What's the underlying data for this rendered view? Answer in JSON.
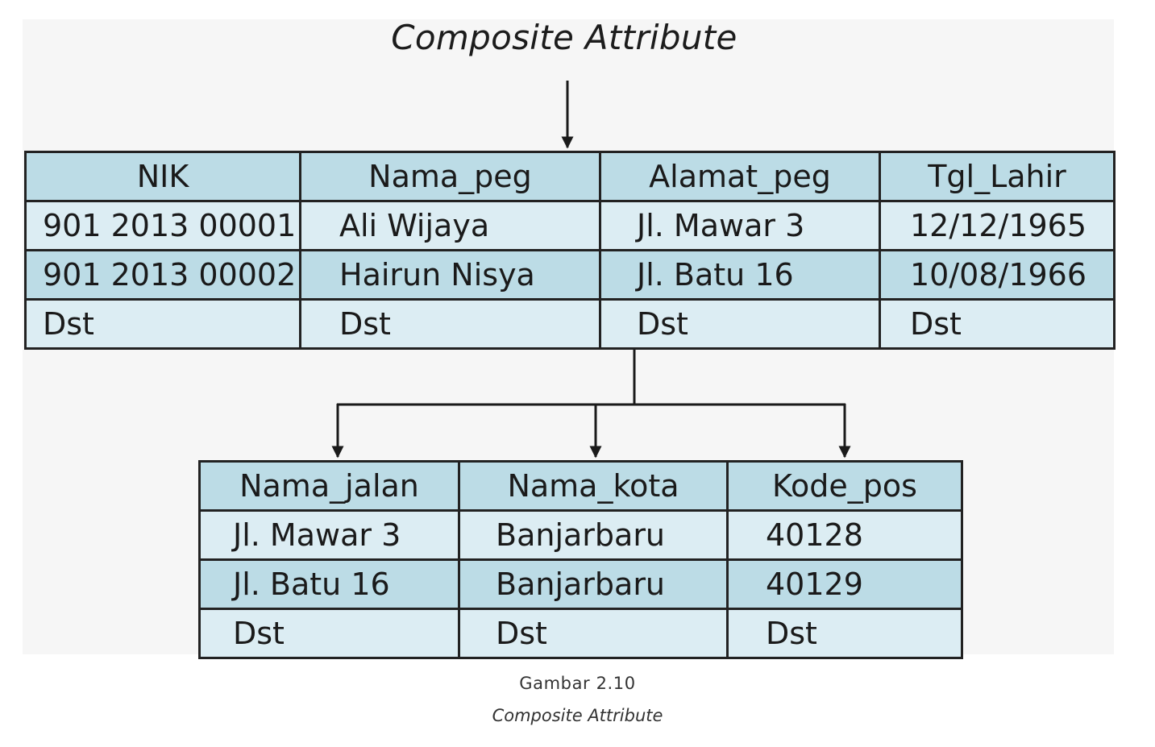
{
  "diagram": {
    "title": "Composite Attribute",
    "employee_table": {
      "headers": [
        "NIK",
        "Nama_peg",
        "Alamat_peg",
        "Tgl_Lahir"
      ],
      "rows": [
        [
          "901 2013 00001",
          "Ali Wijaya",
          "Jl. Mawar 3",
          "12/12/1965"
        ],
        [
          "901 2013 00002",
          "Hairun Nisya",
          "Jl. Batu 16",
          "10/08/1966"
        ],
        [
          "Dst",
          "Dst",
          "Dst",
          "Dst"
        ]
      ]
    },
    "address_table": {
      "headers": [
        "Nama_jalan",
        "Nama_kota",
        "Kode_pos"
      ],
      "rows": [
        [
          "Jl. Mawar 3",
          "Banjarbaru",
          "40128"
        ],
        [
          "Jl. Batu 16",
          "Banjarbaru",
          "40129"
        ],
        [
          "Dst",
          "Dst",
          "Dst"
        ]
      ]
    },
    "colors": {
      "header_fill": "#bcdce6",
      "row_dark_fill": "#bcdce6",
      "row_light_fill": "#dcedf3",
      "border": "#222222"
    }
  },
  "caption": {
    "label": "Gambar 2.10",
    "text": "Composite Attribute"
  }
}
